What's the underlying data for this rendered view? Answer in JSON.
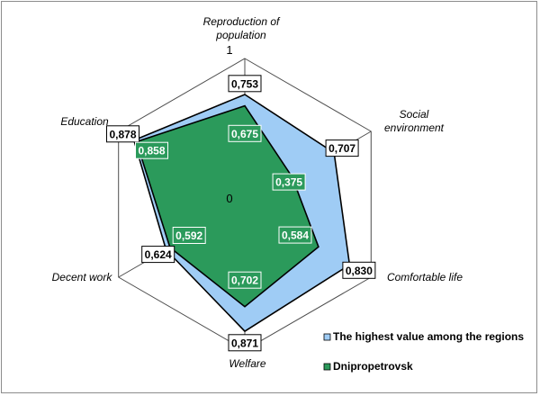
{
  "chart_data": {
    "type": "radar",
    "categories": [
      "Reproduction of population",
      "Social environment",
      "Comfortable life",
      "Welfare",
      "Decent work",
      "Education"
    ],
    "range": [
      0,
      1
    ],
    "tick_labels": {
      "min": "0",
      "max": "1"
    },
    "series": [
      {
        "name": "The highest value among the regions",
        "color": "#9fccf5",
        "values": [
          0.753,
          0.707,
          0.83,
          0.871,
          0.624,
          0.878
        ],
        "labels": [
          "0,753",
          "0,707",
          "0,830",
          "0,871",
          "0,624",
          "0,878"
        ]
      },
      {
        "name": "Dnipropetrovsk",
        "color": "#2b9a5b",
        "values": [
          0.675,
          0.375,
          0.584,
          0.702,
          0.592,
          0.858
        ],
        "labels": [
          "0,675",
          "0,375",
          "0,584",
          "0,702",
          "0,592",
          "0,858"
        ]
      }
    ],
    "legend_position": "bottom-right"
  }
}
